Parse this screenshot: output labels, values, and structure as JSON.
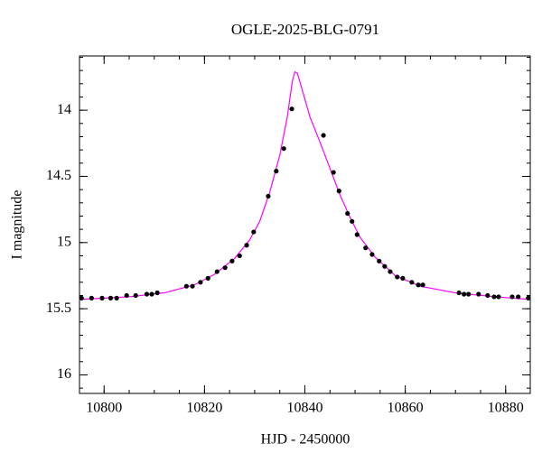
{
  "chart_data": {
    "type": "scatter",
    "title": "OGLE-2025-BLG-0791",
    "x_label": "HJD - 2450000",
    "y_label": "I magnitude",
    "xlim": [
      10795.1,
      10884.9
    ],
    "ylim": [
      13.59,
      16.14
    ],
    "invert_y": true,
    "xticks": [
      10800,
      10820,
      10840,
      10860,
      10880
    ],
    "yticks": [
      14,
      14.5,
      15,
      15.5,
      16
    ],
    "x_minor_step": 5,
    "y_minor_step": 0.1,
    "ticks_all_sides": true,
    "grid": false,
    "series": [
      {
        "mode": "markers",
        "color": "#000000",
        "x": [
          10795.5,
          10797.5,
          10799.6,
          10801.3,
          10802.5,
          10804.5,
          10806.3,
          10808.5,
          10809.5,
          10810.6,
          10816.4,
          10817.6,
          10819.2,
          10820.7,
          10822.5,
          10824.1,
          10825.5,
          10827.0,
          10828.4,
          10829.8,
          10832.7,
          10834.3,
          10835.8,
          10837.4,
          10843.7,
          10845.7,
          10846.8,
          10848.5,
          10849.4,
          10850.4,
          10852.1,
          10853.4,
          10854.8,
          10855.9,
          10857.0,
          10858.4,
          10859.5,
          10861.3,
          10862.6,
          10863.5,
          10870.7,
          10871.7,
          10872.6,
          10874.6,
          10876.4,
          10877.7,
          10878.6,
          10881.3,
          10882.5,
          10884.5
        ],
        "values": [
          15.42,
          15.42,
          15.42,
          15.42,
          15.42,
          15.4,
          15.4,
          15.39,
          15.39,
          15.38,
          15.33,
          15.33,
          15.3,
          15.27,
          15.22,
          15.19,
          15.14,
          15.1,
          15.02,
          14.92,
          14.65,
          14.46,
          14.29,
          13.99,
          14.19,
          14.47,
          14.61,
          14.78,
          14.84,
          14.94,
          15.04,
          15.09,
          15.14,
          15.18,
          15.22,
          15.26,
          15.27,
          15.3,
          15.32,
          15.32,
          15.38,
          15.39,
          15.39,
          15.39,
          15.4,
          15.41,
          15.41,
          15.41,
          15.41,
          15.42
        ]
      },
      {
        "mode": "line",
        "color": "#ff00ff",
        "x": [
          10795,
          10805,
          10812,
          10818,
          10822,
          10826,
          10829,
          10831,
          10833,
          10835,
          10836.5,
          10837.5,
          10838,
          10838.5,
          10839.5,
          10841,
          10843,
          10845,
          10847,
          10849,
          10851,
          10854,
          10858,
          10863,
          10870,
          10878,
          10884.9
        ],
        "values": [
          15.43,
          15.41,
          15.38,
          15.32,
          15.24,
          15.12,
          14.98,
          14.84,
          14.62,
          14.34,
          14.05,
          13.78,
          13.71,
          13.72,
          13.85,
          14.05,
          14.24,
          14.44,
          14.64,
          14.81,
          14.96,
          15.11,
          15.25,
          15.33,
          15.38,
          15.41,
          15.43
        ]
      }
    ]
  }
}
